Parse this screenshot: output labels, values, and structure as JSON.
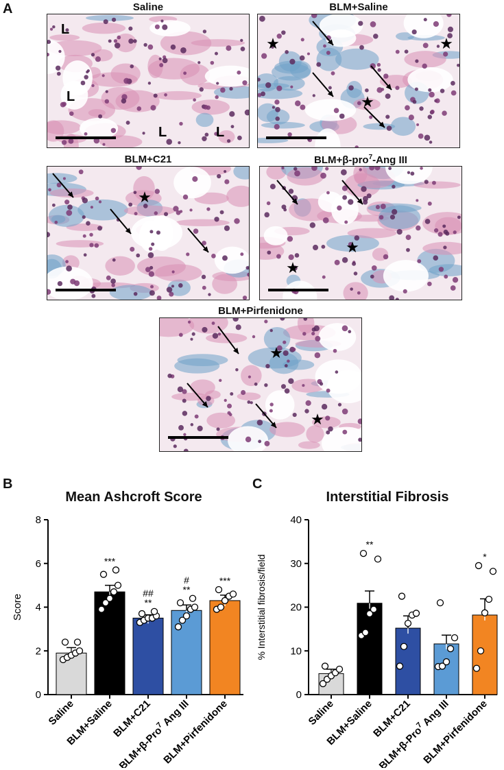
{
  "figure": {
    "panel_letters": {
      "a": "A",
      "b": "B",
      "c": "C"
    },
    "micrographs": [
      {
        "title": "Saline",
        "markers": [
          "L",
          "L",
          "L",
          "L"
        ],
        "arrows": 0,
        "stars": 0
      },
      {
        "title": "BLM+Saline",
        "markers": [],
        "arrows": 4,
        "stars": 3
      },
      {
        "title": "BLM+C21",
        "markers": [],
        "arrows": 3,
        "stars": 1
      },
      {
        "title_prefix": "BLM+β-pro",
        "title_sup": "7",
        "title_suffix": "-Ang III",
        "markers": [],
        "arrows": 2,
        "stars": 2
      },
      {
        "title": "BLM+Pirfenidone",
        "markers": [],
        "arrows": 3,
        "stars": 2
      }
    ],
    "legend_colors": {
      "Saline": "#d9d9d9",
      "BLM+Saline": "#000000",
      "BLM+C21": "#2e4fa3",
      "BLM+beta-pro7 Ang III": "#5b9bd5",
      "BLM+Pirfenidone": "#f28522"
    }
  },
  "chart_data": [
    {
      "type": "bar",
      "title": "Mean Ashcroft Score",
      "ylabel": "Score",
      "xlabel": "",
      "ylim": [
        0,
        8
      ],
      "yticks": [
        "0",
        "2",
        "4",
        "6",
        "8"
      ],
      "categories": [
        "Saline",
        "BLM+Saline",
        "BLM+C21",
        "BLM+β-Pro",
        "BLM+Pirfenidone"
      ],
      "category_sup": [
        "",
        "",
        "",
        "7",
        ""
      ],
      "category_suffix": [
        "",
        "",
        "",
        " Ang III",
        ""
      ],
      "values": [
        1.9,
        4.7,
        3.5,
        3.85,
        4.3
      ],
      "errors": [
        0.25,
        0.3,
        0.15,
        0.25,
        0.25
      ],
      "colors": [
        "#d9d9d9",
        "#000000",
        "#2e4fa3",
        "#5b9bd5",
        "#f28522"
      ],
      "annotations": [
        [],
        [
          "***"
        ],
        [
          "##",
          "**"
        ],
        [
          "#",
          "**"
        ],
        [
          "***"
        ]
      ],
      "points": [
        [
          1.6,
          1.7,
          1.8,
          1.9,
          2.0,
          2.4,
          2.4
        ],
        [
          3.9,
          4.2,
          4.4,
          4.7,
          5.0,
          5.5,
          5.7
        ],
        [
          3.3,
          3.4,
          3.5,
          3.5,
          3.6,
          3.7,
          3.8
        ],
        [
          3.1,
          3.4,
          3.6,
          3.9,
          4.0,
          4.2,
          4.4
        ],
        [
          3.9,
          4.0,
          4.3,
          4.5,
          4.6,
          4.8
        ]
      ]
    },
    {
      "type": "bar",
      "title": "Interstitial Fibrosis",
      "ylabel": "% Interstitial fibrosis/field",
      "xlabel": "",
      "ylim": [
        0,
        40
      ],
      "yticks": [
        "0",
        "10",
        "20",
        "30",
        "40"
      ],
      "categories": [
        "Saline",
        "BLM+Saline",
        "BLM+C21",
        "BLM+β-Pro",
        "BLM+Pirfenidone"
      ],
      "category_sup": [
        "",
        "",
        "",
        "7",
        ""
      ],
      "category_suffix": [
        "",
        "",
        "",
        " Ang III",
        ""
      ],
      "values": [
        4.8,
        20.9,
        15.2,
        11.6,
        18.2
      ],
      "errors": [
        1.0,
        2.8,
        2.8,
        2.0,
        3.7
      ],
      "colors": [
        "#d9d9d9",
        "#000000",
        "#2e4fa3",
        "#5b9bd5",
        "#f28522"
      ],
      "annotations": [
        [],
        [
          "**"
        ],
        [],
        [],
        [
          "*"
        ]
      ],
      "points": [
        [
          2.5,
          3.5,
          4.3,
          5.0,
          5.8,
          6.5
        ],
        [
          13.5,
          14.2,
          18.5,
          19.5,
          31.0,
          32.3
        ],
        [
          6.5,
          11.0,
          16.3,
          18.2,
          18.6,
          22.5
        ],
        [
          6.4,
          6.5,
          7.5,
          10.5,
          13.0,
          21.0
        ],
        [
          6.0,
          10.0,
          18.7,
          21.8,
          28.2,
          29.5
        ]
      ]
    }
  ]
}
